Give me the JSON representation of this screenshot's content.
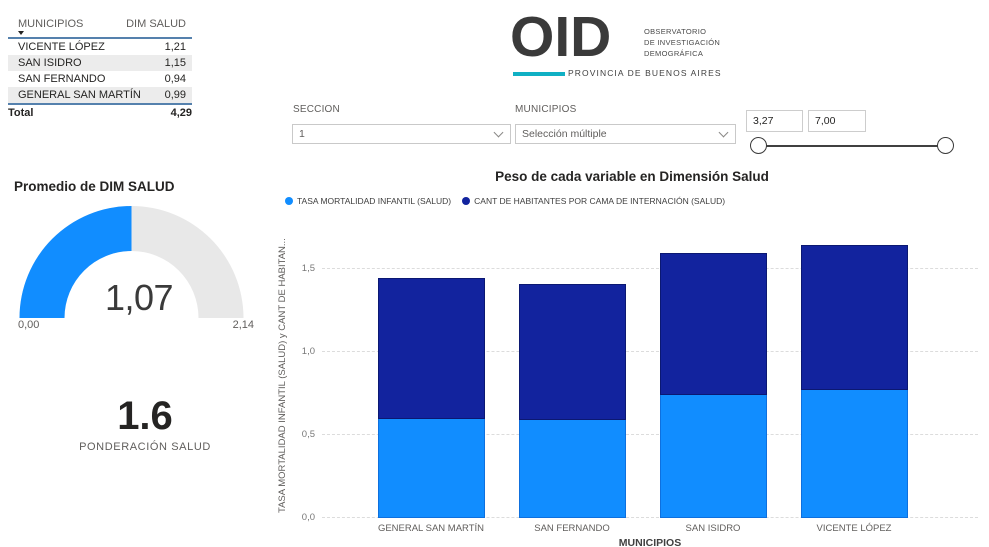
{
  "colors": {
    "accent": "#118DFF",
    "navy": "#12239E",
    "teal": "#10B0C4",
    "gauge_track": "#E8E8E8"
  },
  "table": {
    "columns": [
      "MUNICIPIOS",
      "DIM SALUD"
    ],
    "rows": [
      {
        "name": "VICENTE LÓPEZ",
        "value": "1,21"
      },
      {
        "name": "SAN ISIDRO",
        "value": "1,15"
      },
      {
        "name": "SAN FERNANDO",
        "value": "0,94"
      },
      {
        "name": "GENERAL SAN MARTÍN",
        "value": "0,99"
      }
    ],
    "total_label": "Total",
    "total_value": "4,29"
  },
  "logo": {
    "acronym": "OID",
    "subtitle_lines": [
      "OBSERVATORIO",
      "DE INVESTIGACIÓN",
      "DEMOGRÁFICA"
    ],
    "tagline": "PROVINCIA DE BUENOS AIRES"
  },
  "filters": {
    "seccion": {
      "label": "SECCION",
      "value": "1"
    },
    "municipios": {
      "label": "MUNICIPIOS",
      "value": "Selección múltiple"
    },
    "range": {
      "min": "3,27",
      "max": "7,00"
    }
  },
  "gauge": {
    "title": "Promedio de DIM SALUD",
    "value": 1.07,
    "value_label": "1,07",
    "min": 0,
    "max": 2.14,
    "min_label": "0,00",
    "max_label": "2,14"
  },
  "card": {
    "value": "1.6",
    "label": "PONDERACIÓN SALUD"
  },
  "chart_data": {
    "type": "bar",
    "stacked": true,
    "title": "Peso de cada variable en Dimensión Salud",
    "categories": [
      "GENERAL SAN MARTÍN",
      "SAN FERNANDO",
      "SAN ISIDRO",
      "VICENTE LÓPEZ"
    ],
    "series": [
      {
        "name": "TASA MORTALIDAD INFANTIL (SALUD)",
        "color": "#118DFF",
        "values": [
          0.6,
          0.59,
          0.74,
          0.77
        ]
      },
      {
        "name": "CANT DE HABITANTES POR CAMA DE INTERNACIÓN  (SALUD)",
        "color": "#12239E",
        "values": [
          0.85,
          0.82,
          0.86,
          0.88
        ]
      }
    ],
    "totals": [
      1.45,
      1.41,
      1.6,
      1.65
    ],
    "xlabel": "MUNICIPIOS",
    "ylabel": "TASA MORTALIDAD INFANTIL (SALUD) y CANT DE HABITAN...",
    "ylim": [
      0,
      1.72
    ],
    "yticks": [
      {
        "v": 0.0,
        "label": "0,0"
      },
      {
        "v": 0.5,
        "label": "0,5"
      },
      {
        "v": 1.0,
        "label": "1,0"
      },
      {
        "v": 1.5,
        "label": "1,5"
      }
    ],
    "grid": "dashed",
    "legend_position": "top-left"
  }
}
